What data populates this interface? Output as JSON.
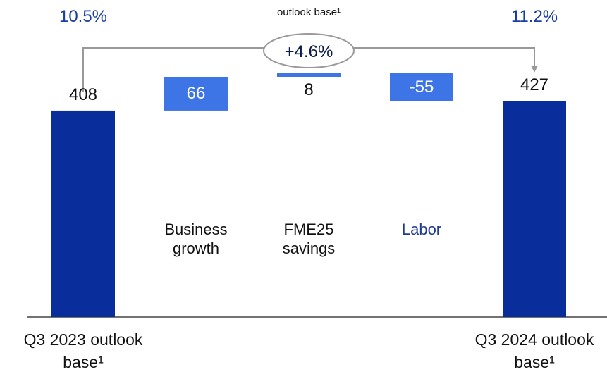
{
  "chart_data": {
    "type": "waterfall",
    "categories": [
      "Q3 2023 outlook base¹",
      "Business growth",
      "FME25 savings",
      "Labor",
      "Q3 2024 outlook base¹"
    ],
    "values": [
      408,
      66,
      8,
      -55,
      427
    ],
    "totals": [
      true,
      false,
      false,
      false,
      true
    ],
    "colors": [
      "#0a2d9c",
      "#3d74e6",
      "#3d74e6",
      "#3d74e6",
      "#0a2d9c"
    ],
    "ylim": [
      0,
      600
    ],
    "annotations": {
      "start_margin": "10.5%",
      "end_margin": "11.2%",
      "bridge_label": "outlook base¹",
      "change": "+4.6%"
    }
  }
}
